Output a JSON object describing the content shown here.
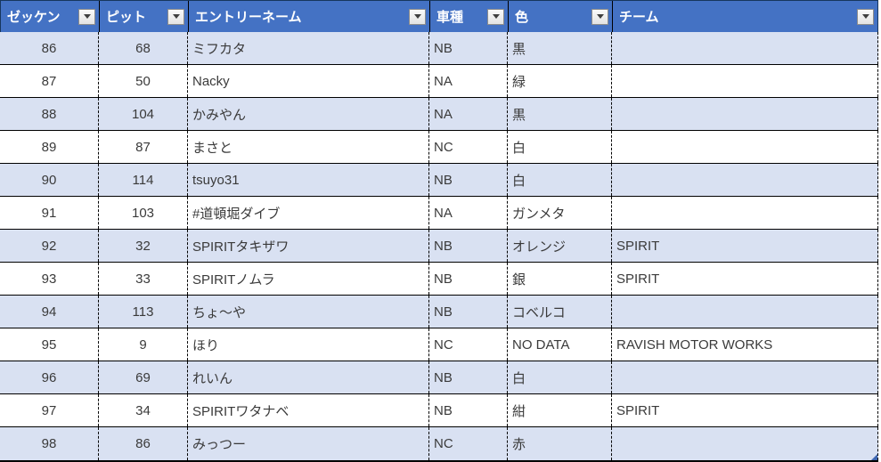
{
  "colors": {
    "header_bg": "#4472C4",
    "header_text": "#FFFFFF",
    "band_bg": "#D9E1F2",
    "row_bg": "#FFFFFF",
    "body_text": "#3A3A3A",
    "handle_color": "#3E66B0"
  },
  "icons": {
    "filter_dropdown": "▾"
  },
  "table": {
    "columns": [
      {
        "label": "ゼッケン"
      },
      {
        "label": "ピット"
      },
      {
        "label": "エントリーネーム"
      },
      {
        "label": "車種"
      },
      {
        "label": "色"
      },
      {
        "label": "チーム"
      }
    ],
    "rows": [
      {
        "zekken": "86",
        "pit": "68",
        "entry": "ミフカタ",
        "car": "NB",
        "color": "黒",
        "team": ""
      },
      {
        "zekken": "87",
        "pit": "50",
        "entry": "Nacky",
        "car": "NA",
        "color": "緑",
        "team": ""
      },
      {
        "zekken": "88",
        "pit": "104",
        "entry": "かみやん",
        "car": "NA",
        "color": "黒",
        "team": ""
      },
      {
        "zekken": "89",
        "pit": "87",
        "entry": "まさと",
        "car": "NC",
        "color": "白",
        "team": ""
      },
      {
        "zekken": "90",
        "pit": "114",
        "entry": "tsuyo31",
        "car": "NB",
        "color": "白",
        "team": ""
      },
      {
        "zekken": "91",
        "pit": "103",
        "entry": "#道頓堀ダイブ",
        "car": "NA",
        "color": "ガンメタ",
        "team": ""
      },
      {
        "zekken": "92",
        "pit": "32",
        "entry": "SPIRITタキザワ",
        "car": "NB",
        "color": "オレンジ",
        "team": "SPIRIT"
      },
      {
        "zekken": "93",
        "pit": "33",
        "entry": "SPIRITノムラ",
        "car": "NB",
        "color": "銀",
        "team": "SPIRIT"
      },
      {
        "zekken": "94",
        "pit": "113",
        "entry": "ちょ～や",
        "car": "NB",
        "color": "コベルコ",
        "team": ""
      },
      {
        "zekken": "95",
        "pit": "9",
        "entry": "ほり",
        "car": "NC",
        "color": "NO DATA",
        "team": "RAVISH MOTOR WORKS"
      },
      {
        "zekken": "96",
        "pit": "69",
        "entry": "れいん",
        "car": "NB",
        "color": "白",
        "team": ""
      },
      {
        "zekken": "97",
        "pit": "34",
        "entry": "SPIRITワタナベ",
        "car": "NB",
        "color": "紺",
        "team": "SPIRIT"
      },
      {
        "zekken": "98",
        "pit": "86",
        "entry": "みっつー",
        "car": "NC",
        "color": "赤",
        "team": ""
      }
    ]
  }
}
